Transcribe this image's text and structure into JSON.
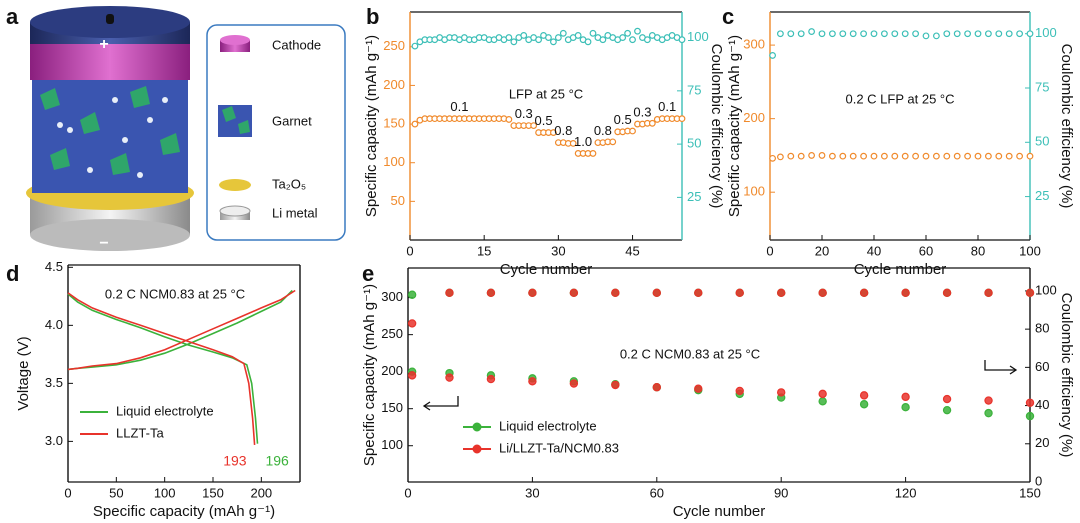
{
  "panel_a": {
    "label": "a",
    "top_sign": "+",
    "bottom_sign": "−",
    "legend": [
      "Cathode",
      "Garnet",
      "Ta₂O₅",
      "Li metal"
    ]
  },
  "chart_data": [
    {
      "type": "line",
      "label": "b",
      "markers": "open",
      "xlabel": "Cycle number",
      "ylabel": "Specific capacity (mAh g⁻¹)",
      "y2label": "Coulombic efficiency (%)",
      "note": "LFP at 25 °C",
      "ycolor": "#f08a2c",
      "y2color": "#3cbfb7",
      "xlim": [
        0,
        55
      ],
      "xticks": [
        0,
        15,
        30,
        45
      ],
      "ylim": [
        0,
        295
      ],
      "yticks": [
        50,
        100,
        150,
        200,
        250
      ],
      "y2lim": [
        5,
        112
      ],
      "y2ticks": [
        25,
        50,
        75,
        100
      ],
      "x": [
        1,
        2,
        3,
        4,
        5,
        6,
        7,
        8,
        9,
        10,
        11,
        12,
        13,
        14,
        15,
        16,
        17,
        18,
        19,
        20,
        21,
        22,
        23,
        24,
        25,
        26,
        27,
        28,
        29,
        30,
        31,
        32,
        33,
        34,
        35,
        36,
        37,
        38,
        39,
        40,
        41,
        42,
        43,
        44,
        45,
        46,
        47,
        48,
        49,
        50,
        51,
        52,
        53,
        54,
        55
      ],
      "series": [
        {
          "color": "#f08a2c",
          "values": [
            150,
            155,
            157,
            157,
            157,
            157,
            157,
            157,
            157,
            157,
            157,
            157,
            157,
            157,
            157,
            157,
            157,
            157,
            157,
            156,
            148,
            148,
            148,
            148,
            148,
            139,
            139,
            139,
            139,
            126,
            126,
            125,
            125,
            112,
            112,
            112,
            112,
            126,
            126,
            127,
            127,
            140,
            140,
            141,
            141,
            150,
            150,
            151,
            151,
            156,
            157,
            157,
            157,
            157,
            157
          ]
        },
        {
          "color": "#3cbfb7",
          "axis": "y2",
          "values": [
            96,
            98,
            99,
            99,
            99,
            100,
            99,
            100,
            100,
            99,
            100,
            99,
            99,
            100,
            100,
            99,
            99,
            100,
            99,
            100,
            98,
            100,
            101,
            99,
            100,
            99,
            101,
            100,
            98,
            100,
            102,
            99,
            100,
            101,
            99,
            98,
            102,
            100,
            99,
            101,
            100,
            99,
            100,
            102,
            99,
            103,
            100,
            99,
            101,
            100,
            99,
            100,
            101,
            100,
            99
          ]
        }
      ],
      "rate_labels": [
        {
          "text": "0.1",
          "x": 10
        },
        {
          "text": "0.3",
          "x": 23
        },
        {
          "text": "0.5",
          "x": 27
        },
        {
          "text": "0.8",
          "x": 31
        },
        {
          "text": "1.0",
          "x": 35
        },
        {
          "text": "0.8",
          "x": 39
        },
        {
          "text": "0.5",
          "x": 43
        },
        {
          "text": "0.3",
          "x": 47
        },
        {
          "text": "0.1",
          "x": 52
        }
      ]
    },
    {
      "type": "line",
      "label": "c",
      "markers": "open",
      "xlabel": "Cycle number",
      "ylabel": "Specific capacity (mAh g⁻¹)",
      "y2label": "Coulombic efficiency (%)",
      "note": "0.2 C LFP at 25 °C",
      "ycolor": "#f08a2c",
      "y2color": "#3cbfb7",
      "xlim": [
        0,
        100
      ],
      "xticks": [
        0,
        20,
        40,
        60,
        80,
        100
      ],
      "ylim": [
        35,
        345
      ],
      "yticks": [
        100,
        200,
        300
      ],
      "y2lim": [
        5,
        110
      ],
      "y2ticks": [
        25,
        50,
        75,
        100
      ],
      "x": [
        1,
        4,
        8,
        12,
        16,
        20,
        24,
        28,
        32,
        36,
        40,
        44,
        48,
        52,
        56,
        60,
        64,
        68,
        72,
        76,
        80,
        84,
        88,
        92,
        96,
        100
      ],
      "series": [
        {
          "color": "#f08a2c",
          "values": [
            146,
            148,
            149,
            149,
            150,
            150,
            149,
            149,
            149,
            149,
            149,
            149,
            149,
            149,
            149,
            149,
            149,
            149,
            149,
            149,
            149,
            149,
            149,
            149,
            149,
            149
          ]
        },
        {
          "color": "#3cbfb7",
          "axis": "y2",
          "values": [
            90,
            100,
            100,
            100,
            101,
            100,
            100,
            100,
            100,
            100,
            100,
            100,
            100,
            100,
            100,
            99,
            99,
            100,
            100,
            100,
            100,
            100,
            100,
            100,
            100,
            100
          ]
        }
      ]
    },
    {
      "type": "line",
      "label": "d",
      "legend": "lower left",
      "xlabel": "Specific capacity (mAh g⁻¹)",
      "ylabel": "Voltage (V)",
      "note": "0.2 C NCM0.83 at 25 °C",
      "xlim": [
        0,
        240
      ],
      "xticks": [
        0,
        50,
        100,
        150,
        200
      ],
      "ylim": [
        2.65,
        4.52
      ],
      "yticks": [
        {
          "value": 3,
          "label": "3.0"
        },
        3.5,
        {
          "value": 4,
          "label": "4.0"
        },
        4.5
      ],
      "series": [
        {
          "name": "Liquid electrolyte",
          "color": "#3bb23b",
          "x": [
            0,
            10,
            25,
            50,
            75,
            100,
            125,
            150,
            170,
            185,
            190,
            194,
            196,
            null,
            0,
            10,
            25,
            50,
            75,
            100,
            125,
            150,
            175,
            200,
            220,
            232
          ],
          "values": [
            4.27,
            4.2,
            4.13,
            4.05,
            3.98,
            3.9,
            3.83,
            3.77,
            3.72,
            3.66,
            3.5,
            3.2,
            2.98,
            null,
            3.62,
            3.63,
            3.64,
            3.66,
            3.7,
            3.76,
            3.84,
            3.93,
            4.02,
            4.12,
            4.2,
            4.3
          ]
        },
        {
          "name": "LLZT-Ta",
          "color": "#e8332b",
          "x": [
            0,
            10,
            25,
            50,
            75,
            100,
            125,
            150,
            170,
            182,
            187,
            191,
            193,
            null,
            0,
            10,
            25,
            50,
            75,
            100,
            125,
            150,
            175,
            200,
            220,
            235
          ],
          "values": [
            4.28,
            4.22,
            4.15,
            4.07,
            4.0,
            3.93,
            3.86,
            3.79,
            3.73,
            3.67,
            3.5,
            3.2,
            2.97,
            null,
            3.62,
            3.63,
            3.65,
            3.67,
            3.72,
            3.79,
            3.88,
            3.97,
            4.06,
            4.15,
            4.22,
            4.3
          ]
        }
      ],
      "annotations": [
        {
          "text": "193",
          "x": 193,
          "color": "#e8332b"
        },
        {
          "text": "196",
          "x": 196,
          "color": "#3bb23b"
        }
      ]
    },
    {
      "type": "line",
      "label": "e",
      "markers": "filled",
      "legend": "lower left",
      "xlabel": "Cycle number",
      "ylabel": "Specific capacity (mAh g⁻¹)",
      "y2label": "Coulombic efficiency (%)",
      "note": "0.2 C NCM0.83 at 25 °C",
      "xlim": [
        0,
        150
      ],
      "xticks": [
        0,
        30,
        60,
        90,
        120,
        150
      ],
      "ylim": [
        51,
        340
      ],
      "yticks": [
        100,
        150,
        200,
        250,
        300
      ],
      "y2lim": [
        0,
        112
      ],
      "y2ticks": [
        0,
        20,
        40,
        60,
        80,
        100
      ],
      "x": [
        1,
        10,
        20,
        30,
        40,
        50,
        60,
        70,
        80,
        90,
        100,
        110,
        120,
        130,
        140,
        150
      ],
      "series": [
        {
          "name": "Liquid electrolyte",
          "color": "#3bb23b",
          "values": [
            200,
            198,
            195,
            191,
            187,
            183,
            179,
            175,
            170,
            165,
            160,
            156,
            152,
            148,
            144,
            140
          ]
        },
        {
          "name": "Li/LLZT-Ta/NCM0.83",
          "color": "#e8332b",
          "values": [
            195,
            192,
            190,
            187,
            184,
            182,
            179,
            177,
            174,
            172,
            170,
            168,
            166,
            163,
            161,
            158
          ]
        },
        {
          "color": "#3bb23b",
          "axis": "y2",
          "values": [
            98,
            99,
            99,
            99,
            99,
            99,
            99,
            99,
            99,
            99,
            99,
            99,
            99,
            99,
            99,
            99
          ]
        },
        {
          "color": "#e8332b",
          "axis": "y2",
          "values": [
            83,
            99,
            99,
            99,
            99,
            99,
            99,
            99,
            99,
            99,
            99,
            99,
            99,
            99,
            99,
            99
          ]
        }
      ]
    }
  ]
}
